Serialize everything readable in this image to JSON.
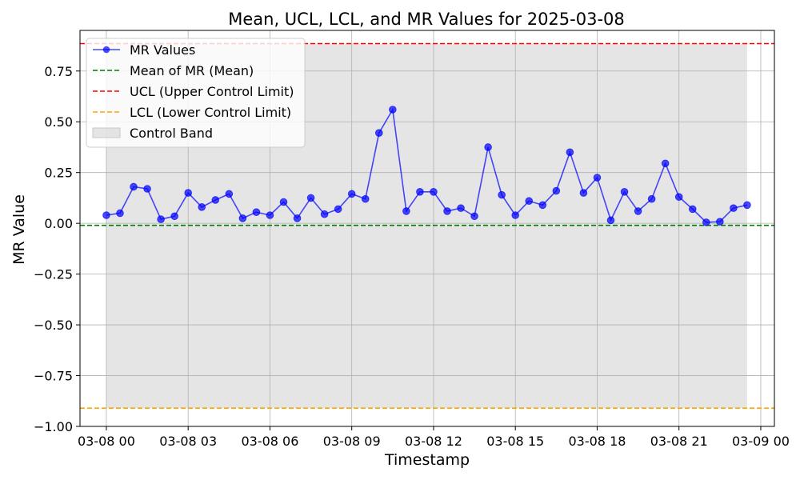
{
  "chart_data": {
    "type": "line",
    "title": "Mean, UCL, LCL, and MR Values for 2025-03-08",
    "xlabel": "Timestamp",
    "ylabel": "MR Value",
    "xlim": [
      "2025-03-07 23:02",
      "2025-03-09 00:30"
    ],
    "ylim": [
      -1.0,
      0.95
    ],
    "grid": true,
    "legend_position": "top-left",
    "x_ticks": [
      {
        "t": "2025-03-08 00:00",
        "label": "03-08 00"
      },
      {
        "t": "2025-03-08 03:00",
        "label": "03-08 03"
      },
      {
        "t": "2025-03-08 06:00",
        "label": "03-08 06"
      },
      {
        "t": "2025-03-08 09:00",
        "label": "03-08 09"
      },
      {
        "t": "2025-03-08 12:00",
        "label": "03-08 12"
      },
      {
        "t": "2025-03-08 15:00",
        "label": "03-08 15"
      },
      {
        "t": "2025-03-08 18:00",
        "label": "03-08 18"
      },
      {
        "t": "2025-03-08 21:00",
        "label": "03-08 21"
      },
      {
        "t": "2025-03-09 00:00",
        "label": "03-09 00"
      }
    ],
    "y_ticks": [
      {
        "v": 0.75,
        "label": "0.75"
      },
      {
        "v": 0.5,
        "label": "0.50"
      },
      {
        "v": 0.25,
        "label": "0.25"
      },
      {
        "v": 0.0,
        "label": "0.00"
      },
      {
        "v": -0.25,
        "label": "−0.25"
      },
      {
        "v": -0.5,
        "label": "−0.50"
      },
      {
        "v": -0.75,
        "label": "−0.75"
      },
      {
        "v": -1.0,
        "label": "−1.00"
      }
    ],
    "series": [
      {
        "name": "MR Values",
        "color": "#0000ff",
        "x": [
          "2025-03-08 00:00",
          "2025-03-08 00:30",
          "2025-03-08 01:00",
          "2025-03-08 01:30",
          "2025-03-08 02:00",
          "2025-03-08 02:30",
          "2025-03-08 03:00",
          "2025-03-08 03:30",
          "2025-03-08 04:00",
          "2025-03-08 04:30",
          "2025-03-08 05:00",
          "2025-03-08 05:30",
          "2025-03-08 06:00",
          "2025-03-08 06:30",
          "2025-03-08 07:00",
          "2025-03-08 07:30",
          "2025-03-08 08:00",
          "2025-03-08 08:30",
          "2025-03-08 09:00",
          "2025-03-08 09:30",
          "2025-03-08 10:00",
          "2025-03-08 10:30",
          "2025-03-08 11:00",
          "2025-03-08 11:30",
          "2025-03-08 12:00",
          "2025-03-08 12:30",
          "2025-03-08 13:00",
          "2025-03-08 13:30",
          "2025-03-08 14:00",
          "2025-03-08 14:30",
          "2025-03-08 15:00",
          "2025-03-08 15:30",
          "2025-03-08 16:00",
          "2025-03-08 16:30",
          "2025-03-08 17:00",
          "2025-03-08 17:30",
          "2025-03-08 18:00",
          "2025-03-08 18:30",
          "2025-03-08 19:00",
          "2025-03-08 19:30",
          "2025-03-08 20:00",
          "2025-03-08 20:30",
          "2025-03-08 21:00",
          "2025-03-08 21:30",
          "2025-03-08 22:00",
          "2025-03-08 22:30",
          "2025-03-08 23:00",
          "2025-03-08 23:30"
        ],
        "values": [
          0.04,
          0.05,
          0.18,
          0.17,
          0.02,
          0.035,
          0.15,
          0.08,
          0.115,
          0.145,
          0.025,
          0.055,
          0.04,
          0.105,
          0.025,
          0.125,
          0.045,
          0.07,
          0.145,
          0.12,
          0.445,
          0.56,
          0.06,
          0.155,
          0.155,
          0.06,
          0.075,
          0.035,
          0.375,
          0.14,
          0.04,
          0.11,
          0.09,
          0.16,
          0.35,
          0.15,
          0.225,
          0.015,
          0.155,
          0.06,
          0.12,
          0.295,
          0.13,
          0.07,
          0.005,
          0.008,
          0.075,
          0.09
        ]
      },
      {
        "name": "Mean of MR (Mean)",
        "color": "#008000",
        "value": -0.01
      },
      {
        "name": "UCL (Upper Control Limit)",
        "color": "#ff0000",
        "value": 0.885
      },
      {
        "name": "LCL (Lower Control Limit)",
        "color": "#ffa500",
        "value": -0.91
      },
      {
        "name": "Control Band",
        "color": "#d3d3d3",
        "from": -0.91,
        "to": 0.885,
        "x_start": "2025-03-08 00:00",
        "x_end": "2025-03-08 23:30"
      }
    ]
  }
}
